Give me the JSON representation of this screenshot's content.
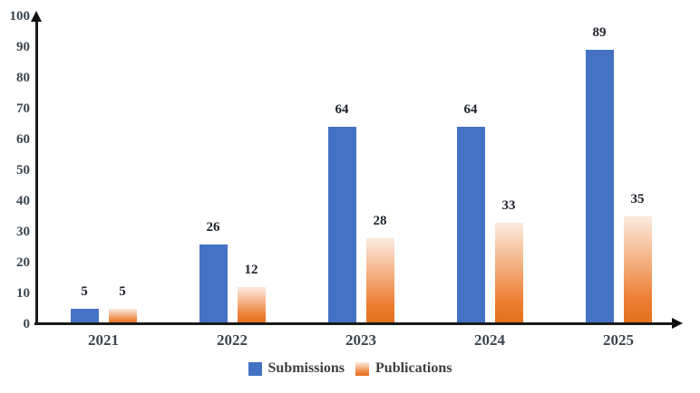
{
  "chart_data": {
    "type": "bar",
    "title": "",
    "xlabel": "",
    "ylabel": "",
    "categories": [
      "2021",
      "2022",
      "2023",
      "2024",
      "2025"
    ],
    "series": [
      {
        "name": "Submissions",
        "color": "#4472C4",
        "values": [
          5,
          26,
          64,
          64,
          89
        ]
      },
      {
        "name": "Publications",
        "color": "#ED7D31",
        "gradient_top": "#FBE8DA",
        "gradient_bottom": "#E2701A",
        "values": [
          5,
          12,
          28,
          33,
          35
        ]
      }
    ],
    "ylim": [
      0,
      100
    ],
    "yticks": [
      0,
      10,
      20,
      30,
      40,
      50,
      60,
      70,
      80,
      90,
      100
    ],
    "grid": false,
    "legend_position": "bottom",
    "bar_labels": true
  },
  "colors": {
    "background": "#FFFFFF",
    "axis": "#1A1A1A",
    "tick_label": "#3C464F",
    "category_label": "#3C464F",
    "data_label": "#20242B",
    "legend_text": "#3F3F3F"
  }
}
